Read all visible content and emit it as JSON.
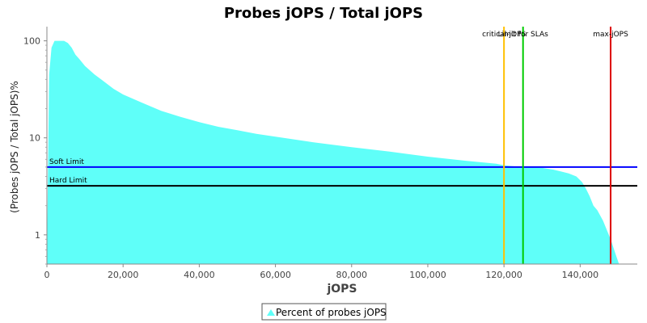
{
  "chart_data": {
    "type": "area",
    "title": "Probes jOPS / Total jOPS",
    "xlabel": "jOPS",
    "ylabel": "(Probes jOPS / Total jOPS)%",
    "xlim": [
      0,
      155000
    ],
    "ylim": [
      0.5,
      140
    ],
    "yscale": "log",
    "grid": false,
    "x_ticks": [
      0,
      20000,
      40000,
      60000,
      80000,
      100000,
      120000,
      140000
    ],
    "x_tick_labels": [
      "0",
      "20,000",
      "40,000",
      "60,000",
      "80,000",
      "100,000",
      "120,000",
      "140,000"
    ],
    "y_ticks": [
      1,
      10,
      100
    ],
    "y_tick_labels": [
      "1",
      "10",
      "100"
    ],
    "series": [
      {
        "name": "Percent of probes jOPS",
        "color": "#5ffff9",
        "x": [
          0,
          600,
          1200,
          2000,
          3000,
          4500,
          5500,
          6500,
          7500,
          8500,
          10000,
          12500,
          15000,
          17500,
          20000,
          25000,
          30000,
          35000,
          40000,
          45000,
          50000,
          55000,
          60000,
          70000,
          80000,
          90000,
          100000,
          110000,
          118000,
          120000,
          125000,
          130000,
          133000,
          135000,
          137000,
          139000,
          140500,
          141500,
          142500,
          143500,
          144500,
          146000,
          148000,
          149500,
          150200,
          155000
        ],
        "values": [
          0.6,
          45,
          85,
          100,
          100,
          100,
          95,
          85,
          72,
          65,
          55,
          45,
          38,
          32,
          28,
          23,
          19,
          16.5,
          14.5,
          13,
          12,
          11,
          10.3,
          9,
          8,
          7.2,
          6.4,
          5.8,
          5.4,
          5.2,
          5.0,
          4.9,
          4.7,
          4.5,
          4.3,
          4.0,
          3.5,
          3.0,
          2.5,
          2.0,
          1.8,
          1.4,
          0.9,
          0.6,
          0.5,
          0.5
        ]
      }
    ],
    "horizontal_lines": [
      {
        "label": "Soft Limit",
        "y": 5.0,
        "color": "#0000ff"
      },
      {
        "label": "Hard Limit",
        "y": 3.2,
        "color": "#000000"
      }
    ],
    "vertical_lines": [
      {
        "label": "critical-jOPS",
        "x": 120000,
        "color": "#ffc000"
      },
      {
        "label": "Limit for SLAs",
        "x": 125000,
        "color": "#00cc00"
      },
      {
        "label": "max-jOPS",
        "x": 148000,
        "color": "#dd0000"
      }
    ],
    "legend": {
      "position": "bottom",
      "label": "Percent of probes jOPS"
    }
  }
}
